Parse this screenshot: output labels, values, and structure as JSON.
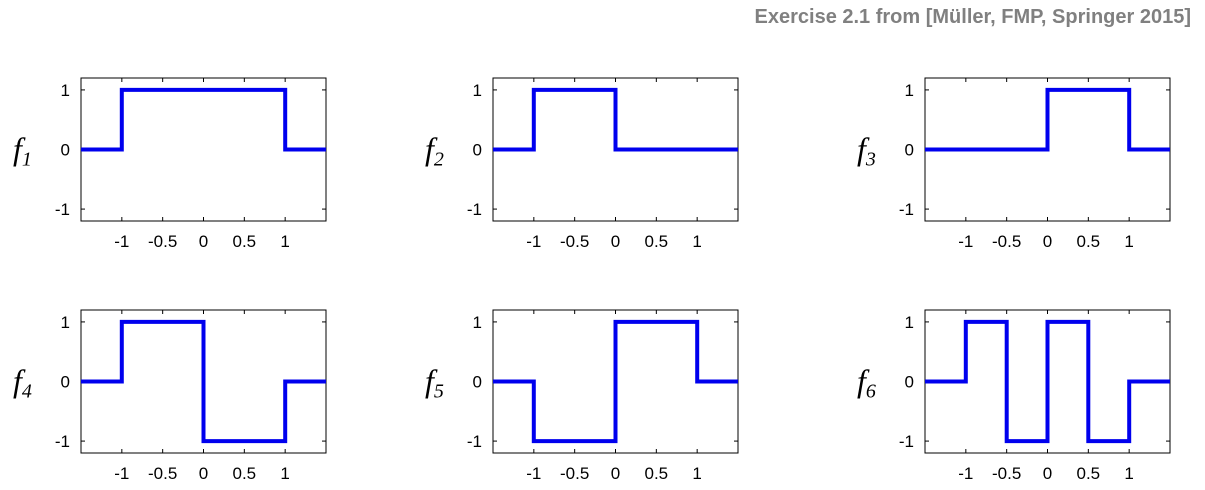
{
  "title": "Exercise 2.1 from [Müller, FMP, Springer 2015]",
  "line_color": "#0000ee",
  "chart_data": [
    {
      "type": "line",
      "label_base": "f",
      "label_sub": "1",
      "xlim": [
        -1.5,
        1.5
      ],
      "ylim": [
        -1.2,
        1.2
      ],
      "xticks": [
        -1,
        -0.5,
        0,
        0.5,
        1
      ],
      "xtick_labels": [
        "-1",
        "-0.5",
        "0",
        "0.5",
        "1"
      ],
      "yticks": [
        -1,
        0,
        1
      ],
      "ytick_labels": [
        "-1",
        "0",
        "1"
      ],
      "x": [
        -1.5,
        -1,
        -1,
        1,
        1,
        1.5
      ],
      "y": [
        0,
        0,
        1,
        1,
        0,
        0
      ]
    },
    {
      "type": "line",
      "label_base": "f",
      "label_sub": "2",
      "xlim": [
        -1.5,
        1.5
      ],
      "ylim": [
        -1.2,
        1.2
      ],
      "xticks": [
        -1,
        -0.5,
        0,
        0.5,
        1
      ],
      "xtick_labels": [
        "-1",
        "-0.5",
        "0",
        "0.5",
        "1"
      ],
      "yticks": [
        -1,
        0,
        1
      ],
      "ytick_labels": [
        "-1",
        "0",
        "1"
      ],
      "x": [
        -1.5,
        -1,
        -1,
        0,
        0,
        1.5
      ],
      "y": [
        0,
        0,
        1,
        1,
        0,
        0
      ]
    },
    {
      "type": "line",
      "label_base": "f",
      "label_sub": "3",
      "xlim": [
        -1.5,
        1.5
      ],
      "ylim": [
        -1.2,
        1.2
      ],
      "xticks": [
        -1,
        -0.5,
        0,
        0.5,
        1
      ],
      "xtick_labels": [
        "-1",
        "-0.5",
        "0",
        "0.5",
        "1"
      ],
      "yticks": [
        -1,
        0,
        1
      ],
      "ytick_labels": [
        "-1",
        "0",
        "1"
      ],
      "x": [
        -1.5,
        0,
        0,
        1,
        1,
        1.5
      ],
      "y": [
        0,
        0,
        1,
        1,
        0,
        0
      ]
    },
    {
      "type": "line",
      "label_base": "f",
      "label_sub": "4",
      "xlim": [
        -1.5,
        1.5
      ],
      "ylim": [
        -1.2,
        1.2
      ],
      "xticks": [
        -1,
        -0.5,
        0,
        0.5,
        1
      ],
      "xtick_labels": [
        "-1",
        "-0.5",
        "0",
        "0.5",
        "1"
      ],
      "yticks": [
        -1,
        0,
        1
      ],
      "ytick_labels": [
        "-1",
        "0",
        "1"
      ],
      "x": [
        -1.5,
        -1,
        -1,
        0,
        0,
        1,
        1,
        1.5
      ],
      "y": [
        0,
        0,
        1,
        1,
        -1,
        -1,
        0,
        0
      ]
    },
    {
      "type": "line",
      "label_base": "f",
      "label_sub": "5",
      "xlim": [
        -1.5,
        1.5
      ],
      "ylim": [
        -1.2,
        1.2
      ],
      "xticks": [
        -1,
        -0.5,
        0,
        0.5,
        1
      ],
      "xtick_labels": [
        "-1",
        "-0.5",
        "0",
        "0.5",
        "1"
      ],
      "yticks": [
        -1,
        0,
        1
      ],
      "ytick_labels": [
        "-1",
        "0",
        "1"
      ],
      "x": [
        -1.5,
        -1,
        -1,
        0,
        0,
        1,
        1,
        1.5
      ],
      "y": [
        0,
        0,
        -1,
        -1,
        1,
        1,
        0,
        0
      ]
    },
    {
      "type": "line",
      "label_base": "f",
      "label_sub": "6",
      "xlim": [
        -1.5,
        1.5
      ],
      "ylim": [
        -1.2,
        1.2
      ],
      "xticks": [
        -1,
        -0.5,
        0,
        0.5,
        1
      ],
      "xtick_labels": [
        "-1",
        "-0.5",
        "0",
        "0.5",
        "1"
      ],
      "yticks": [
        -1,
        0,
        1
      ],
      "ytick_labels": [
        "-1",
        "0",
        "1"
      ],
      "x": [
        -1.5,
        -1,
        -1,
        -0.5,
        -0.5,
        0,
        0,
        0.5,
        0.5,
        1,
        1,
        1.5
      ],
      "y": [
        0,
        0,
        1,
        1,
        -1,
        -1,
        1,
        1,
        -1,
        -1,
        0,
        0
      ]
    }
  ]
}
